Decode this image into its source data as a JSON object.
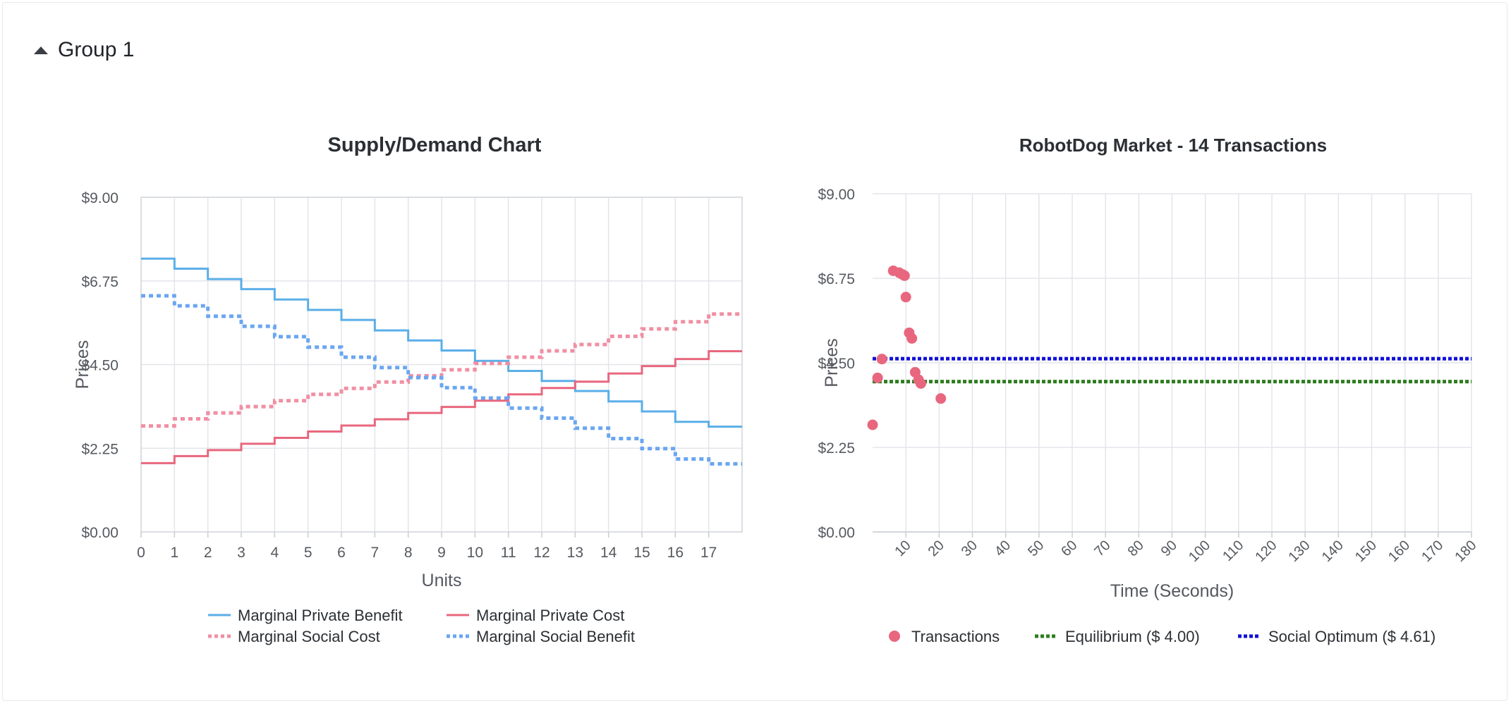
{
  "group": {
    "title": "Group 1"
  },
  "chart_data": [
    {
      "type": "line",
      "title": "Supply/Demand Chart",
      "xlabel": "Units",
      "ylabel": "Prices",
      "xlim": [
        0,
        18
      ],
      "ylim": [
        0,
        9
      ],
      "x_ticks": [
        "0",
        "1",
        "2",
        "3",
        "4",
        "5",
        "6",
        "7",
        "8",
        "9",
        "10",
        "11",
        "12",
        "13",
        "14",
        "15",
        "16",
        "17"
      ],
      "y_ticks": [
        "$0.00",
        "$2.25",
        "$4.50",
        "$6.75",
        "$9.00"
      ],
      "grid": true,
      "legend_position": "bottom",
      "step": true,
      "series": [
        {
          "name": "Marginal Private Benefit",
          "color": "#5aaee8",
          "dash": "solid",
          "values": [
            7.35,
            7.08,
            6.8,
            6.53,
            6.25,
            5.97,
            5.7,
            5.42,
            5.15,
            4.88,
            4.6,
            4.33,
            4.06,
            3.79,
            3.51,
            3.24,
            2.96,
            2.83
          ]
        },
        {
          "name": "Marginal Private Cost",
          "color": "#e8677e",
          "dash": "solid",
          "values": [
            1.85,
            2.04,
            2.2,
            2.37,
            2.53,
            2.7,
            2.86,
            3.03,
            3.2,
            3.36,
            3.53,
            3.7,
            3.87,
            4.04,
            4.26,
            4.46,
            4.65,
            4.86
          ]
        },
        {
          "name": "Marginal Social Cost",
          "color": "#f08fa3",
          "dash": "dotted",
          "values": [
            2.85,
            3.04,
            3.2,
            3.37,
            3.53,
            3.7,
            3.86,
            4.03,
            4.2,
            4.36,
            4.53,
            4.7,
            4.87,
            5.04,
            5.26,
            5.46,
            5.65,
            5.86
          ]
        },
        {
          "name": "Marginal Social Benefit",
          "color": "#6aa6f0",
          "dash": "dotted",
          "values": [
            6.35,
            6.08,
            5.8,
            5.53,
            5.25,
            4.97,
            4.7,
            4.42,
            4.15,
            3.88,
            3.6,
            3.33,
            3.06,
            2.79,
            2.51,
            2.24,
            1.96,
            1.83
          ]
        }
      ]
    },
    {
      "type": "scatter",
      "title": "RobotDog Market - 14 Transactions",
      "xlabel": "Time (Seconds)",
      "ylabel": "Prices",
      "xlim": [
        0,
        180
      ],
      "ylim": [
        0,
        9
      ],
      "x_ticks": [
        "10",
        "20",
        "30",
        "40",
        "50",
        "60",
        "70",
        "80",
        "90",
        "100",
        "110",
        "120",
        "130",
        "140",
        "150",
        "160",
        "170",
        "180"
      ],
      "y_ticks": [
        "$0.00",
        "$2.25",
        "$4.50",
        "$6.75",
        "$9.00"
      ],
      "grid": true,
      "legend_position": "bottom",
      "transactions": {
        "name": "Transactions",
        "color": "#e8677e",
        "points": [
          {
            "x": 0,
            "y": 2.85
          },
          {
            "x": 1.5,
            "y": 4.1
          },
          {
            "x": 2.8,
            "y": 4.6
          },
          {
            "x": 6.2,
            "y": 6.95
          },
          {
            "x": 8.0,
            "y": 6.9
          },
          {
            "x": 9.0,
            "y": 6.85
          },
          {
            "x": 9.6,
            "y": 6.82
          },
          {
            "x": 10.0,
            "y": 6.25
          },
          {
            "x": 11.0,
            "y": 5.3
          },
          {
            "x": 11.8,
            "y": 5.15
          },
          {
            "x": 12.8,
            "y": 4.25
          },
          {
            "x": 13.8,
            "y": 4.05
          },
          {
            "x": 14.5,
            "y": 3.95
          },
          {
            "x": 20.5,
            "y": 3.55
          }
        ]
      },
      "lines": [
        {
          "name": "Equilibrium ($ 4.00)",
          "value": 4.0,
          "color": "#2e7d1f"
        },
        {
          "name": "Social Optimum ($ 4.61)",
          "value": 4.61,
          "color": "#1010d8"
        }
      ]
    }
  ]
}
